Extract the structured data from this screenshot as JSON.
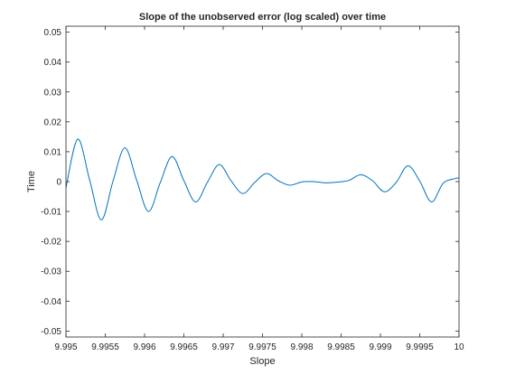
{
  "chart_data": {
    "type": "line",
    "title": "Slope of the unobserved error (log scaled) over time",
    "xlabel": "Slope",
    "ylabel": "Time",
    "xlim": [
      9.995,
      10
    ],
    "ylim": [
      -0.052,
      0.052
    ],
    "grid": false,
    "x_ticks": [
      9.995,
      9.9955,
      9.996,
      9.9965,
      9.997,
      9.9975,
      9.998,
      9.9985,
      9.999,
      9.9995,
      10
    ],
    "x_tick_labels": [
      "9.995",
      "9.9955",
      "9.996",
      "9.9965",
      "9.997",
      "9.9975",
      "9.998",
      "9.9985",
      "9.999",
      "9.9995",
      "10"
    ],
    "y_ticks": [
      -0.05,
      -0.04,
      -0.03,
      -0.02,
      -0.01,
      0,
      0.01,
      0.02,
      0.03,
      0.04,
      0.05
    ],
    "y_tick_labels": [
      "-0.05",
      "-0.04",
      "-0.03",
      "-0.02",
      "-0.01",
      "0",
      "0.01",
      "0.02",
      "0.03",
      "0.04",
      "0.05"
    ],
    "series": [
      {
        "color": "#0072bd",
        "x": [
          9.995,
          9.99515,
          9.9953,
          9.99545,
          9.9956,
          9.99575,
          9.9959,
          9.99605,
          9.9962,
          9.99635,
          9.9965,
          9.99665,
          9.9968,
          9.99695,
          9.9971,
          9.99725,
          9.9974,
          9.99755,
          9.9977,
          9.99785,
          9.998,
          9.99815,
          9.9983,
          9.99845,
          9.9986,
          9.99875,
          9.9989,
          9.99905,
          9.9992,
          9.99935,
          9.9995,
          9.99965,
          9.9998,
          9.99995,
          10.0
        ],
        "y": [
          -0.002,
          0.0142,
          0.0007,
          -0.0128,
          0.0003,
          0.0113,
          0.0004,
          -0.01,
          -0.0003,
          0.0084,
          0.0003,
          -0.0068,
          -0.0002,
          0.0057,
          0.0003,
          -0.004,
          -0.0003,
          0.0027,
          0.0003,
          -0.0012,
          -0.0001,
          0.0,
          -0.0004,
          -0.0002,
          0.0004,
          0.0023,
          0.0003,
          -0.0034,
          -0.0003,
          0.0053,
          0.0002,
          -0.0068,
          -0.0005,
          0.001,
          0.0012
        ]
      }
    ]
  }
}
